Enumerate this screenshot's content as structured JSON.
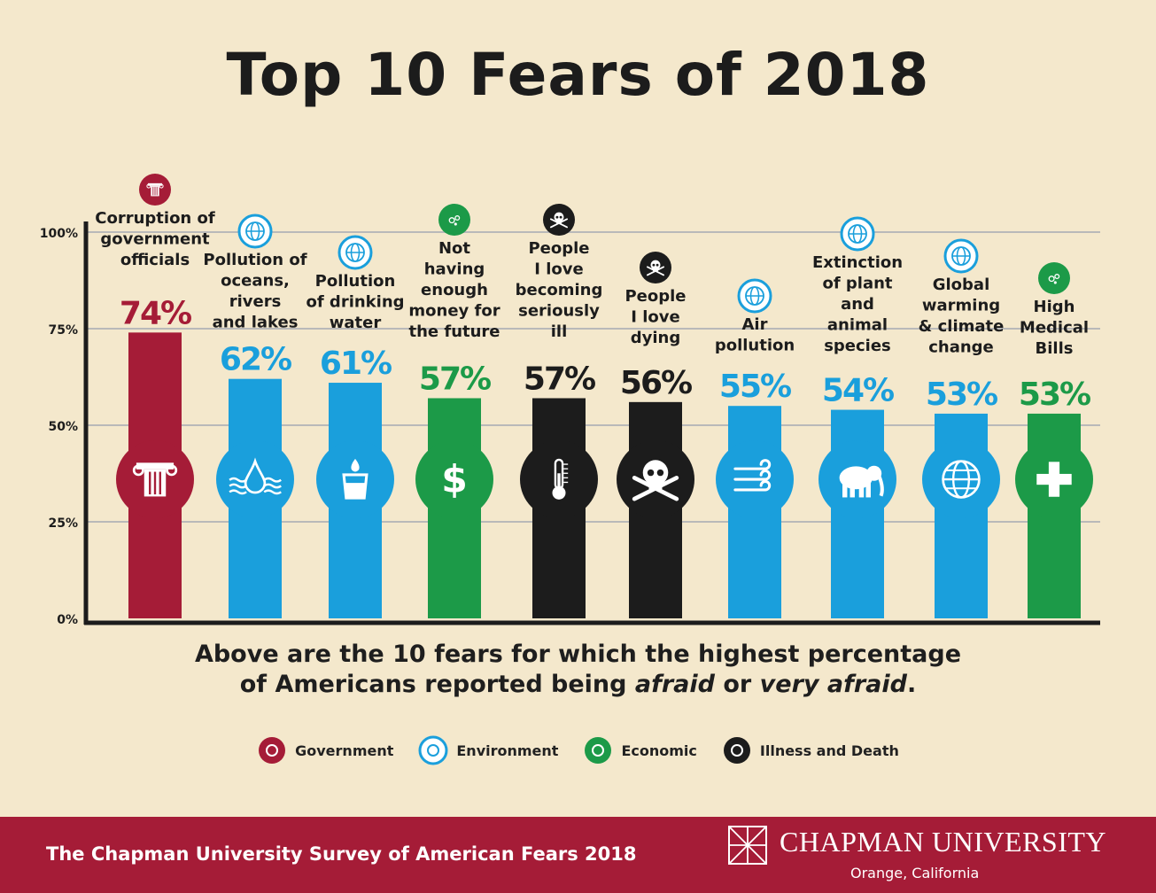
{
  "title": "Top 10 Fears of 2018",
  "subtitle_lines": [
    {
      "before": "Above are the 10 fears for which the highest percentage",
      "em1": "",
      "mid": "",
      "em2": "",
      "after": ""
    },
    {
      "before": "of Americans reported being ",
      "em1": "afraid",
      "mid": " or ",
      "em2": "very afraid",
      "after": "."
    }
  ],
  "colors": {
    "Government": "#a51c37",
    "Environment": "#1a9fdc",
    "Economic": "#1c9a48",
    "Illness and Death": "#1c1c1c",
    "background": "#f4e8cc",
    "grid": "#b9b9b9",
    "axis": "#1c1c1c"
  },
  "chart_data": {
    "type": "bar",
    "title": "Top 10 Fears of 2018",
    "categories": [
      "Corruption of government officials",
      "Pollution of oceans, rivers and lakes",
      "Pollution of drinking water",
      "Not having enough money for the future",
      "People I love becoming seriously ill",
      "People I love dying",
      "Air pollution",
      "Extinction of plant and animal species",
      "Global warming & climate change",
      "High Medical Bills"
    ],
    "category_label_lines": [
      [
        "Corruption of",
        "government",
        "officials"
      ],
      [
        "Pollution of",
        "oceans,",
        "rivers",
        "and lakes"
      ],
      [
        "Pollution",
        "of drinking",
        "water"
      ],
      [
        "Not",
        "having",
        "enough",
        "money for",
        "the future"
      ],
      [
        "People",
        "I love",
        "becoming",
        "seriously",
        "ill"
      ],
      [
        "People",
        "I love",
        "dying"
      ],
      [
        "Air",
        "pollution"
      ],
      [
        "Extinction",
        "of plant",
        "and",
        "animal",
        "species"
      ],
      [
        "Global",
        "warming",
        "& climate",
        "change"
      ],
      [
        "High",
        "Medical",
        "Bills"
      ]
    ],
    "values": [
      74,
      62,
      61,
      57,
      57,
      56,
      55,
      54,
      53,
      53
    ],
    "value_labels": [
      "74%",
      "62%",
      "61%",
      "57%",
      "57%",
      "56%",
      "55%",
      "54%",
      "53%",
      "53%"
    ],
    "groups": [
      "Government",
      "Environment",
      "Environment",
      "Economic",
      "Illness and Death",
      "Illness and Death",
      "Environment",
      "Environment",
      "Environment",
      "Economic"
    ],
    "bar_icons": [
      "column-icon",
      "water-drop-icon",
      "glass-of-water-icon",
      "dollar-icon",
      "thermometer-icon",
      "skull-crossbones-icon",
      "wind-icon",
      "elephant-icon",
      "globe-icon",
      "medical-cross-icon"
    ],
    "ylim": [
      0,
      100
    ],
    "yticks": [
      0,
      25,
      50,
      75,
      100
    ],
    "ytick_labels": [
      "0%",
      "25%",
      "50%",
      "75%",
      "100%"
    ],
    "grid": true,
    "xlabel": "",
    "ylabel": ""
  },
  "legend": [
    {
      "label": "Government",
      "icon": "column-icon"
    },
    {
      "label": "Environment",
      "icon": "globe-icon"
    },
    {
      "label": "Economic",
      "icon": "coins-icon"
    },
    {
      "label": "Illness and Death",
      "icon": "skull-crossbones-icon"
    }
  ],
  "footer": {
    "survey": "The Chapman University Survey of American Fears 2018",
    "university": "CHAPMAN UNIVERSITY",
    "location": "Orange, California"
  }
}
